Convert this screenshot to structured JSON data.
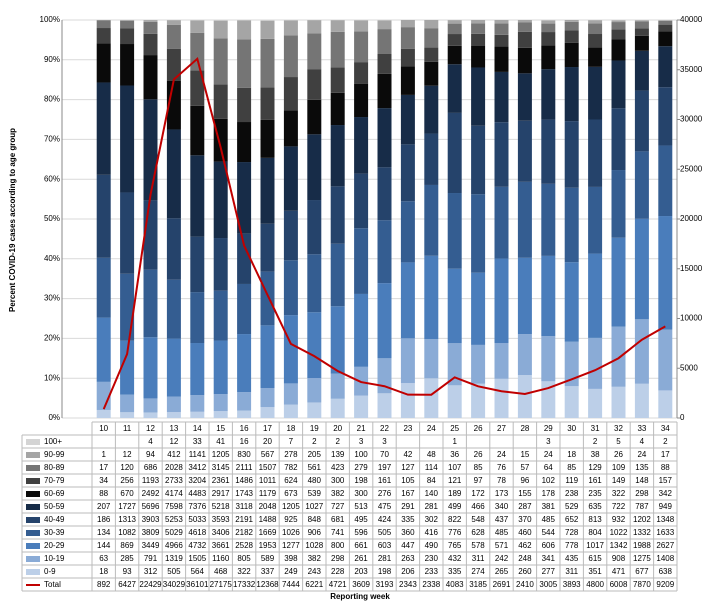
{
  "chart_data": {
    "type": "bar",
    "y_label": "Percent COVID-19 cases according to age group",
    "x_label": "Reporting week",
    "categories": [
      "10",
      "11",
      "12",
      "13",
      "14",
      "15",
      "16",
      "17",
      "18",
      "19",
      "20",
      "21",
      "22",
      "23",
      "24",
      "25",
      "26",
      "27",
      "28",
      "29",
      "30",
      "31",
      "32",
      "33",
      "34"
    ],
    "ylim": [
      0,
      100
    ],
    "yticks": [
      {
        "value": 0,
        "label": "0%"
      },
      {
        "value": 10,
        "label": "10%"
      },
      {
        "value": 20,
        "label": "20%"
      },
      {
        "value": 30,
        "label": "30%"
      },
      {
        "value": 40,
        "label": "40%"
      },
      {
        "value": 50,
        "label": "50%"
      },
      {
        "value": 60,
        "label": "60%"
      },
      {
        "value": 70,
        "label": "70%"
      },
      {
        "value": 80,
        "label": "80%"
      },
      {
        "value": 90,
        "label": "90%"
      },
      {
        "value": 100,
        "label": "100%"
      }
    ],
    "y2lim": [
      0,
      40000
    ],
    "y2ticks": [
      0,
      5000,
      10000,
      15000,
      20000,
      25000,
      30000,
      35000,
      40000
    ],
    "grid": true,
    "series": [
      {
        "name": "100+",
        "color": "#d4d4d4",
        "values": [
          null,
          null,
          4,
          12,
          33,
          41,
          16,
          20,
          7,
          2,
          2,
          3,
          3,
          null,
          null,
          1,
          null,
          null,
          null,
          3,
          null,
          2,
          5,
          4,
          2
        ]
      },
      {
        "name": "90-99",
        "color": "#a5a5a5",
        "values": [
          1,
          12,
          94,
          412,
          1141,
          1205,
          830,
          567,
          278,
          205,
          139,
          100,
          70,
          42,
          48,
          36,
          26,
          24,
          15,
          24,
          18,
          38,
          26,
          24,
          17
        ]
      },
      {
        "name": "80-89",
        "color": "#757575",
        "values": [
          17,
          120,
          686,
          2028,
          3412,
          3145,
          2111,
          1507,
          782,
          561,
          423,
          279,
          197,
          127,
          114,
          107,
          85,
          76,
          57,
          64,
          85,
          129,
          109,
          135,
          88
        ]
      },
      {
        "name": "70-79",
        "color": "#404040",
        "values": [
          34,
          256,
          1193,
          2733,
          3204,
          2361,
          1486,
          1011,
          624,
          480,
          300,
          198,
          161,
          105,
          84,
          121,
          97,
          78,
          96,
          102,
          119,
          161,
          149,
          148,
          157
        ]
      },
      {
        "name": "60-69",
        "color": "#0a0a0a",
        "values": [
          88,
          670,
          2492,
          4174,
          4483,
          2917,
          1743,
          1179,
          673,
          539,
          382,
          300,
          276,
          167,
          140,
          189,
          172,
          173,
          155,
          178,
          238,
          235,
          322,
          298,
          342
        ]
      },
      {
        "name": "50-59",
        "color": "#172c48",
        "values": [
          207,
          1727,
          5696,
          7598,
          7376,
          5218,
          3118,
          2048,
          1205,
          1027,
          727,
          513,
          475,
          291,
          281,
          499,
          466,
          340,
          287,
          381,
          529,
          635,
          722,
          787,
          949
        ]
      },
      {
        "name": "40-49",
        "color": "#25436b",
        "values": [
          186,
          1313,
          3903,
          5253,
          5033,
          3593,
          2191,
          1488,
          925,
          848,
          681,
          495,
          424,
          335,
          302,
          822,
          548,
          437,
          370,
          485,
          652,
          813,
          932,
          1202,
          1348
        ]
      },
      {
        "name": "30-39",
        "color": "#345d91",
        "values": [
          134,
          1082,
          3809,
          5029,
          4618,
          3406,
          2182,
          1669,
          1026,
          906,
          741,
          596,
          505,
          360,
          416,
          776,
          628,
          485,
          460,
          544,
          728,
          804,
          1022,
          1332,
          1633
        ]
      },
      {
        "name": "20-29",
        "color": "#4a7dbb",
        "values": [
          144,
          869,
          3449,
          4966,
          4732,
          3661,
          2528,
          1953,
          1277,
          1028,
          800,
          661,
          603,
          447,
          490,
          765,
          578,
          571,
          462,
          606,
          778,
          1017,
          1342,
          1988,
          2627
        ]
      },
      {
        "name": "10-19",
        "color": "#8aabd6",
        "values": [
          63,
          285,
          791,
          1319,
          1505,
          1160,
          805,
          589,
          398,
          382,
          298,
          261,
          281,
          263,
          230,
          432,
          311,
          242,
          248,
          341,
          435,
          615,
          908,
          1275,
          1408
        ]
      },
      {
        "name": "0-9",
        "color": "#bccfe8",
        "values": [
          18,
          93,
          312,
          505,
          564,
          468,
          322,
          337,
          249,
          243,
          228,
          203,
          198,
          206,
          233,
          335,
          274,
          265,
          260,
          277,
          311,
          351,
          471,
          677,
          638
        ]
      },
      {
        "name": "Total",
        "color": "#c00000",
        "type": "line",
        "axis": "y2",
        "values": [
          892,
          6427,
          22429,
          34029,
          36101,
          27175,
          17332,
          12368,
          7444,
          6221,
          4721,
          3609,
          3193,
          2343,
          2338,
          4083,
          3185,
          2691,
          2410,
          3005,
          3893,
          4800,
          6008,
          7870,
          9209
        ]
      }
    ]
  }
}
